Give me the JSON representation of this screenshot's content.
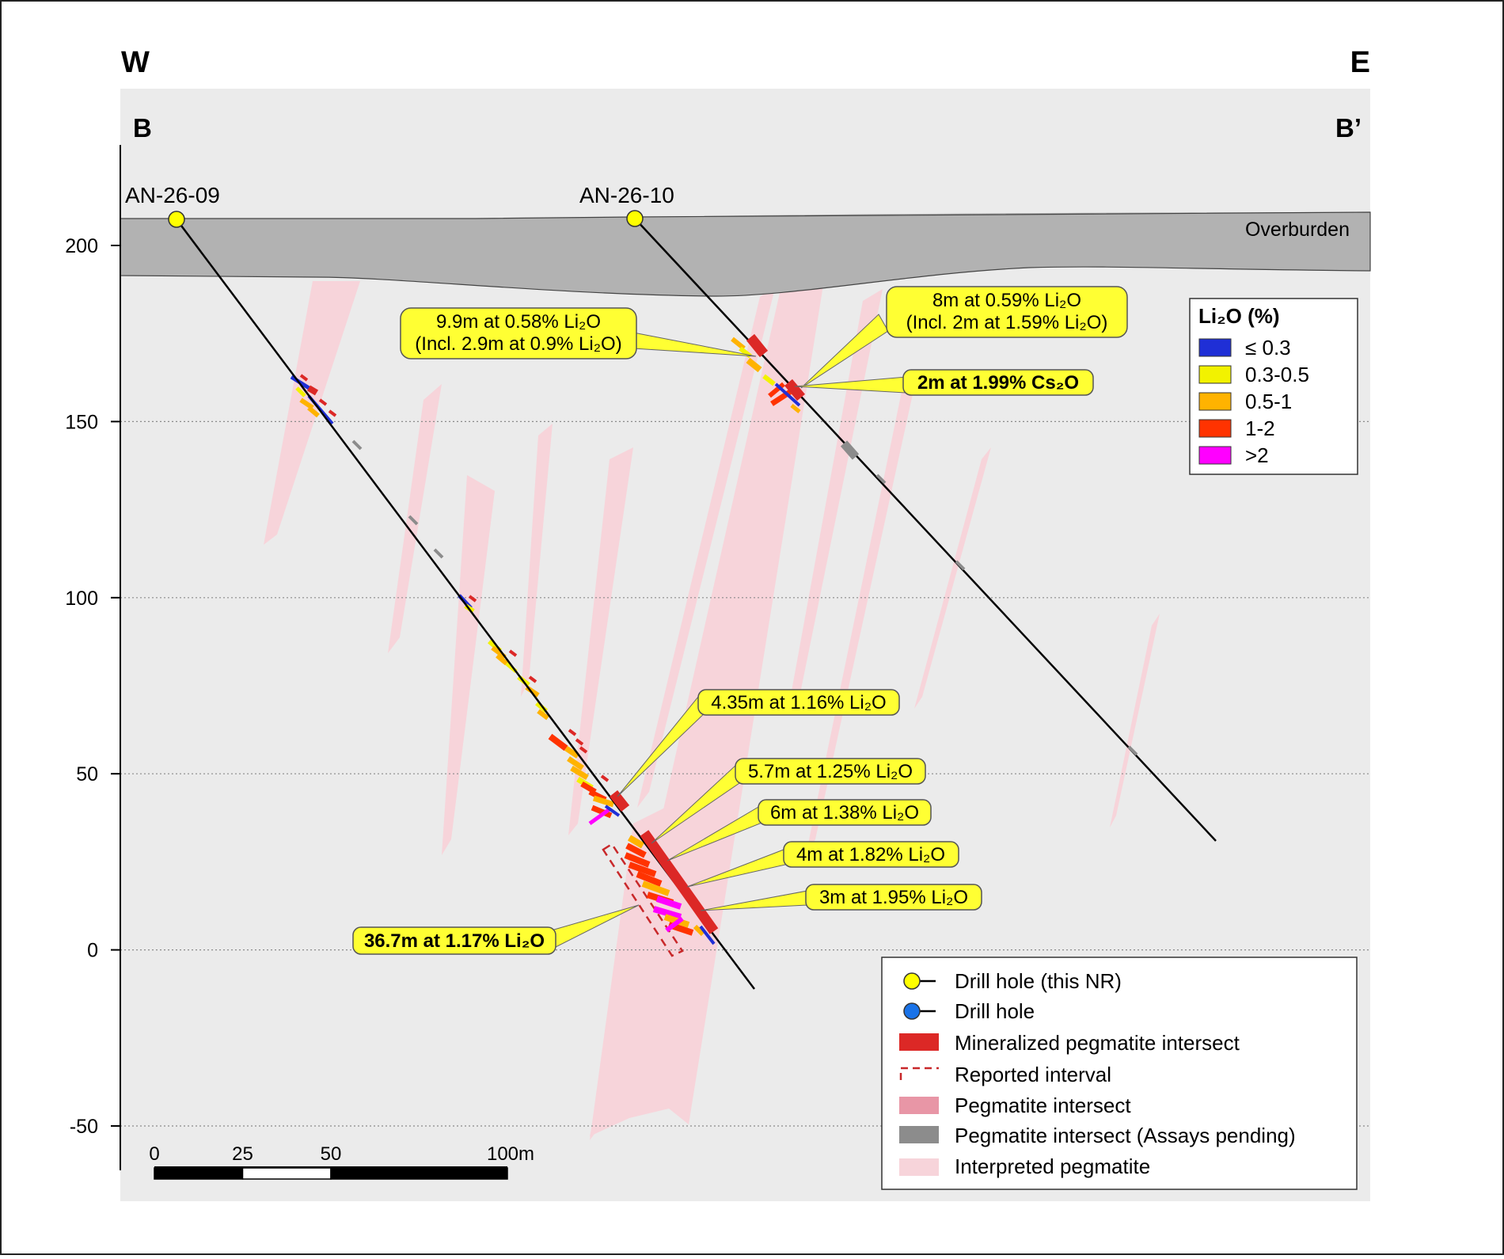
{
  "orientation": {
    "west": "W",
    "east": "E"
  },
  "section": {
    "start": "B",
    "end": "B’"
  },
  "overburden_label": "Overburden",
  "y_axis": {
    "ticks": [
      {
        "value": 200,
        "label": "200"
      },
      {
        "value": 150,
        "label": "150"
      },
      {
        "value": 100,
        "label": "100"
      },
      {
        "value": 50,
        "label": "50"
      },
      {
        "value": 0,
        "label": "0"
      },
      {
        "value": -50,
        "label": "-50"
      }
    ]
  },
  "drill_holes": [
    {
      "id": "AN-26-09",
      "type": "this NR"
    },
    {
      "id": "AN-26-10",
      "type": "this NR"
    }
  ],
  "callouts": {
    "c1_line1": "9.9m at 0.58% Li₂O",
    "c1_line2": "(Incl. 2.9m at 0.9% Li₂O)",
    "c2_line1": "8m at 0.59% Li₂O",
    "c2_line2": "(Incl. 2m at 1.59% Li₂O)",
    "c3": "2m at 1.99% Cs₂O",
    "c4": "4.35m at 1.16% Li₂O",
    "c5": "5.7m at 1.25% Li₂O",
    "c6": "6m at 1.38% Li₂O",
    "c7": "4m at 1.82% Li₂O",
    "c8": "3m at 1.95% Li₂O",
    "c9": "36.7m at 1.17% Li₂O"
  },
  "grade_legend": {
    "title": "Li₂O (%)",
    "items": [
      {
        "label": "≤ 0.3",
        "color": "#1f2fd6"
      },
      {
        "label": "0.3-0.5",
        "color": "#f2f200"
      },
      {
        "label": "0.5-1",
        "color": "#ffb300"
      },
      {
        "label": "1-2",
        "color": "#ff3300"
      },
      {
        "label": ">2",
        "color": "#ff00ff"
      }
    ]
  },
  "symbol_legend": {
    "drill_hole_nr": "Drill hole (this NR)",
    "drill_hole": "Drill hole",
    "mineralized": "Mineralized pegmatite intersect",
    "reported": "Reported interval",
    "pegmatite": "Pegmatite intersect",
    "pending": "Pegmatite intersect (Assays pending)",
    "interpreted": "Interpreted pegmatite"
  },
  "scale_bar": {
    "labels": [
      "0",
      "25",
      "50",
      "100m"
    ],
    "values": [
      0,
      25,
      50,
      100
    ]
  },
  "colors": {
    "background": "#ebebeb",
    "overburden": "#b2b2b2",
    "mineralized": "#dc2826",
    "pegmatite": "#e896a6",
    "pending": "#8c8c8c",
    "interpreted": "#f7d4da",
    "callout": "#ffff33"
  }
}
